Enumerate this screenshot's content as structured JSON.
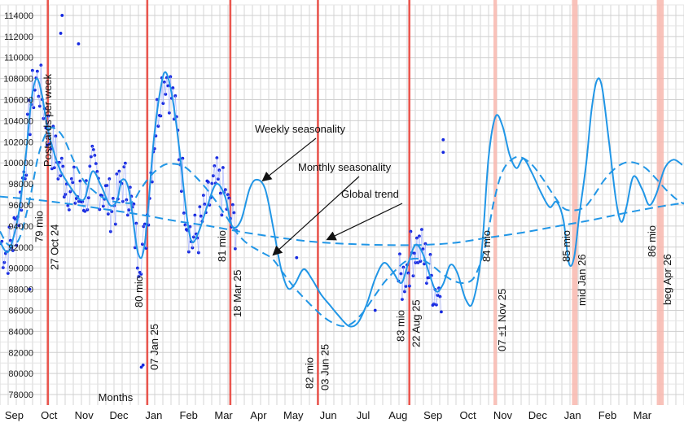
{
  "chart_data": {
    "type": "scatter",
    "ylabel": "Postcards per week",
    "xlabel": "Months",
    "ylim": [
      77000,
      115000
    ],
    "y_ticks": [
      78000,
      80000,
      82000,
      84000,
      86000,
      88000,
      90000,
      92000,
      94000,
      96000,
      98000,
      100000,
      102000,
      104000,
      106000,
      108000,
      110000,
      112000,
      114000
    ],
    "y_tick_labels": [
      "78000",
      "80000",
      "82000",
      "84000",
      "86000",
      "88000",
      "90000",
      "92000",
      "94000",
      "96000",
      "98000",
      "100000",
      "102000",
      "104000",
      "106000",
      "108000",
      "110000",
      "112000",
      "114000"
    ],
    "x_months": [
      "Sep",
      "Oct",
      "Nov",
      "Dec",
      "Jan",
      "Feb",
      "Mar",
      "Apr",
      "May",
      "Jun",
      "Jul",
      "Aug",
      "Sep",
      "Oct",
      "Nov",
      "Dec",
      "Jan",
      "Feb",
      "Mar"
    ],
    "grid": true,
    "series": [
      {
        "name": "Weekly seasonality",
        "style": "solid",
        "color": "#2196e6",
        "points": [
          [
            0,
            92500
          ],
          [
            0.2,
            91500
          ],
          [
            0.35,
            92500
          ],
          [
            0.55,
            95500
          ],
          [
            0.75,
            101000
          ],
          [
            0.9,
            106000
          ],
          [
            1.05,
            108000
          ],
          [
            1.2,
            106500
          ],
          [
            1.35,
            103500
          ],
          [
            1.5,
            101500
          ],
          [
            1.7,
            99500
          ],
          [
            1.9,
            98300
          ],
          [
            2.1,
            97300
          ],
          [
            2.3,
            96500
          ],
          [
            2.45,
            96800
          ],
          [
            2.65,
            99200
          ],
          [
            2.9,
            97800
          ],
          [
            3.15,
            96000
          ],
          [
            3.35,
            96400
          ],
          [
            3.5,
            98400
          ],
          [
            3.7,
            97300
          ],
          [
            3.95,
            91500
          ],
          [
            4.15,
            92400
          ],
          [
            4.4,
            102000
          ],
          [
            4.6,
            107000
          ],
          [
            4.75,
            108600
          ],
          [
            4.95,
            106000
          ],
          [
            5.15,
            101000
          ],
          [
            5.35,
            95000
          ],
          [
            5.5,
            92500
          ],
          [
            5.7,
            93500
          ],
          [
            5.95,
            96000
          ],
          [
            6.2,
            98000
          ],
          [
            6.45,
            96800
          ],
          [
            6.65,
            94000
          ],
          [
            6.9,
            94500
          ],
          [
            7.15,
            97500
          ],
          [
            7.35,
            98400
          ],
          [
            7.6,
            97500
          ],
          [
            7.85,
            93500
          ],
          [
            8.05,
            90000
          ],
          [
            8.25,
            88100
          ],
          [
            8.45,
            88500
          ],
          [
            8.7,
            89900
          ],
          [
            8.95,
            88900
          ],
          [
            9.2,
            87500
          ],
          [
            9.45,
            86500
          ],
          [
            9.7,
            85500
          ],
          [
            10.0,
            84500
          ],
          [
            10.25,
            84800
          ],
          [
            10.5,
            86500
          ],
          [
            10.75,
            89000
          ],
          [
            11.0,
            90500
          ],
          [
            11.25,
            89700
          ],
          [
            11.5,
            88600
          ],
          [
            11.7,
            90500
          ],
          [
            11.9,
            92200
          ],
          [
            12.1,
            91500
          ],
          [
            12.3,
            89500
          ],
          [
            12.5,
            87800
          ],
          [
            12.7,
            88500
          ],
          [
            12.9,
            90300
          ],
          [
            13.1,
            89600
          ],
          [
            13.35,
            87000
          ],
          [
            13.55,
            86800
          ],
          [
            13.8,
            91500
          ],
          [
            14.0,
            100500
          ],
          [
            14.2,
            104400
          ],
          [
            14.4,
            103500
          ],
          [
            14.6,
            100800
          ],
          [
            14.8,
            99500
          ],
          [
            15.0,
            100400
          ],
          [
            15.25,
            99000
          ],
          [
            15.5,
            97200
          ],
          [
            15.75,
            95800
          ],
          [
            15.95,
            96300
          ],
          [
            16.15,
            94500
          ],
          [
            16.3,
            90500
          ],
          [
            16.45,
            91000
          ],
          [
            16.6,
            95000
          ],
          [
            16.8,
            100000
          ],
          [
            16.95,
            105000
          ],
          [
            17.1,
            107800
          ],
          [
            17.25,
            107200
          ],
          [
            17.45,
            102000
          ],
          [
            17.65,
            96500
          ],
          [
            17.8,
            94400
          ],
          [
            17.95,
            95800
          ],
          [
            18.15,
            98700
          ],
          [
            18.4,
            97500
          ],
          [
            18.6,
            96000
          ],
          [
            18.8,
            97000
          ],
          [
            19.05,
            99500
          ],
          [
            19.3,
            100300
          ],
          [
            19.55,
            99800
          ]
        ]
      },
      {
        "name": "Monthly seasonality",
        "style": "dashed",
        "color": "#2196e6",
        "points": [
          [
            0,
            93500
          ],
          [
            0.25,
            92200
          ],
          [
            0.55,
            92800
          ],
          [
            0.85,
            96500
          ],
          [
            1.1,
            100700
          ],
          [
            1.35,
            103000
          ],
          [
            1.55,
            103300
          ],
          [
            1.8,
            102500
          ],
          [
            2.1,
            100300
          ],
          [
            2.4,
            98300
          ],
          [
            2.7,
            97300
          ],
          [
            3.0,
            96600
          ],
          [
            3.3,
            96300
          ],
          [
            3.55,
            96200
          ],
          [
            3.8,
            96300
          ],
          [
            4.05,
            97600
          ],
          [
            4.35,
            98900
          ],
          [
            4.7,
            99800
          ],
          [
            5.0,
            99900
          ],
          [
            5.3,
            99600
          ],
          [
            5.6,
            98700
          ],
          [
            5.9,
            97600
          ],
          [
            6.2,
            96300
          ],
          [
            6.5,
            94800
          ],
          [
            6.8,
            93300
          ],
          [
            7.1,
            92300
          ],
          [
            7.45,
            91600
          ],
          [
            7.8,
            90900
          ],
          [
            8.1,
            89600
          ],
          [
            8.4,
            88300
          ],
          [
            8.7,
            87200
          ],
          [
            9.0,
            86200
          ],
          [
            9.3,
            85300
          ],
          [
            9.6,
            84700
          ],
          [
            9.85,
            84500
          ],
          [
            10.1,
            84800
          ],
          [
            10.4,
            85800
          ],
          [
            10.7,
            87200
          ],
          [
            11.0,
            88600
          ],
          [
            11.3,
            89700
          ],
          [
            11.6,
            90600
          ],
          [
            11.85,
            90900
          ],
          [
            12.1,
            90800
          ],
          [
            12.4,
            90200
          ],
          [
            12.7,
            89400
          ],
          [
            13.0,
            88800
          ],
          [
            13.3,
            88600
          ],
          [
            13.6,
            89200
          ],
          [
            13.9,
            92000
          ],
          [
            14.15,
            96300
          ],
          [
            14.4,
            99200
          ],
          [
            14.7,
            100400
          ],
          [
            14.95,
            100500
          ],
          [
            15.25,
            99800
          ],
          [
            15.55,
            98500
          ],
          [
            15.85,
            97000
          ],
          [
            16.15,
            95700
          ],
          [
            16.45,
            95500
          ],
          [
            16.75,
            95800
          ],
          [
            17.0,
            96800
          ],
          [
            17.3,
            98300
          ],
          [
            17.6,
            99400
          ],
          [
            17.9,
            100000
          ],
          [
            18.2,
            100000
          ],
          [
            18.5,
            99500
          ],
          [
            18.8,
            98500
          ],
          [
            19.1,
            97400
          ],
          [
            19.4,
            96500
          ],
          [
            19.6,
            96100
          ]
        ]
      },
      {
        "name": "Global trend",
        "style": "dashed",
        "color": "#2196e6",
        "points": [
          [
            0,
            96800
          ],
          [
            1,
            96500
          ],
          [
            2,
            96100
          ],
          [
            3,
            95600
          ],
          [
            4,
            95100
          ],
          [
            5,
            94500
          ],
          [
            6,
            94000
          ],
          [
            7,
            93400
          ],
          [
            8,
            92900
          ],
          [
            9,
            92500
          ],
          [
            10,
            92300
          ],
          [
            11,
            92200
          ],
          [
            12,
            92200
          ],
          [
            13,
            92400
          ],
          [
            14,
            92900
          ],
          [
            15,
            93400
          ],
          [
            16,
            94000
          ],
          [
            17,
            94600
          ],
          [
            18,
            95300
          ],
          [
            19,
            95900
          ],
          [
            19.6,
            96200
          ]
        ]
      }
    ],
    "milestones": [
      {
        "label": "79 mio",
        "date": "27 Oct 24",
        "x": 1.37,
        "width": 0.06
      },
      {
        "label": "80 mio",
        "date": "07 Jan 25",
        "x": 4.22,
        "width": 0.06
      },
      {
        "label": "81 mio",
        "date": "18 Mar 25",
        "x": 6.6,
        "width": 0.06
      },
      {
        "label": "82 mio",
        "date": "03 Jun 25",
        "x": 9.11,
        "width": 0.06
      },
      {
        "label": "83 mio",
        "date": "22 Aug 25",
        "x": 11.73,
        "width": 0.06
      },
      {
        "label": "84 mio",
        "date": "07 ±1 Nov 25",
        "x": 14.19,
        "width": 0.1
      },
      {
        "label": "85 mio",
        "date": "mid Jan 26",
        "x": 16.47,
        "width": 0.16
      },
      {
        "label": "86 mio",
        "date": "beg Apr 26",
        "x": 18.92,
        "width": 0.2
      }
    ],
    "annotations": [
      {
        "text": "Weekly seasonality",
        "target_series": "Weekly seasonality",
        "target_x": 7.45
      },
      {
        "text": "Monthly seasonality",
        "target_series": "Monthly seasonality",
        "target_x": 7.75
      },
      {
        "text": "Global trend",
        "target_series": "Global trend",
        "target_x": 9.3
      }
    ]
  }
}
